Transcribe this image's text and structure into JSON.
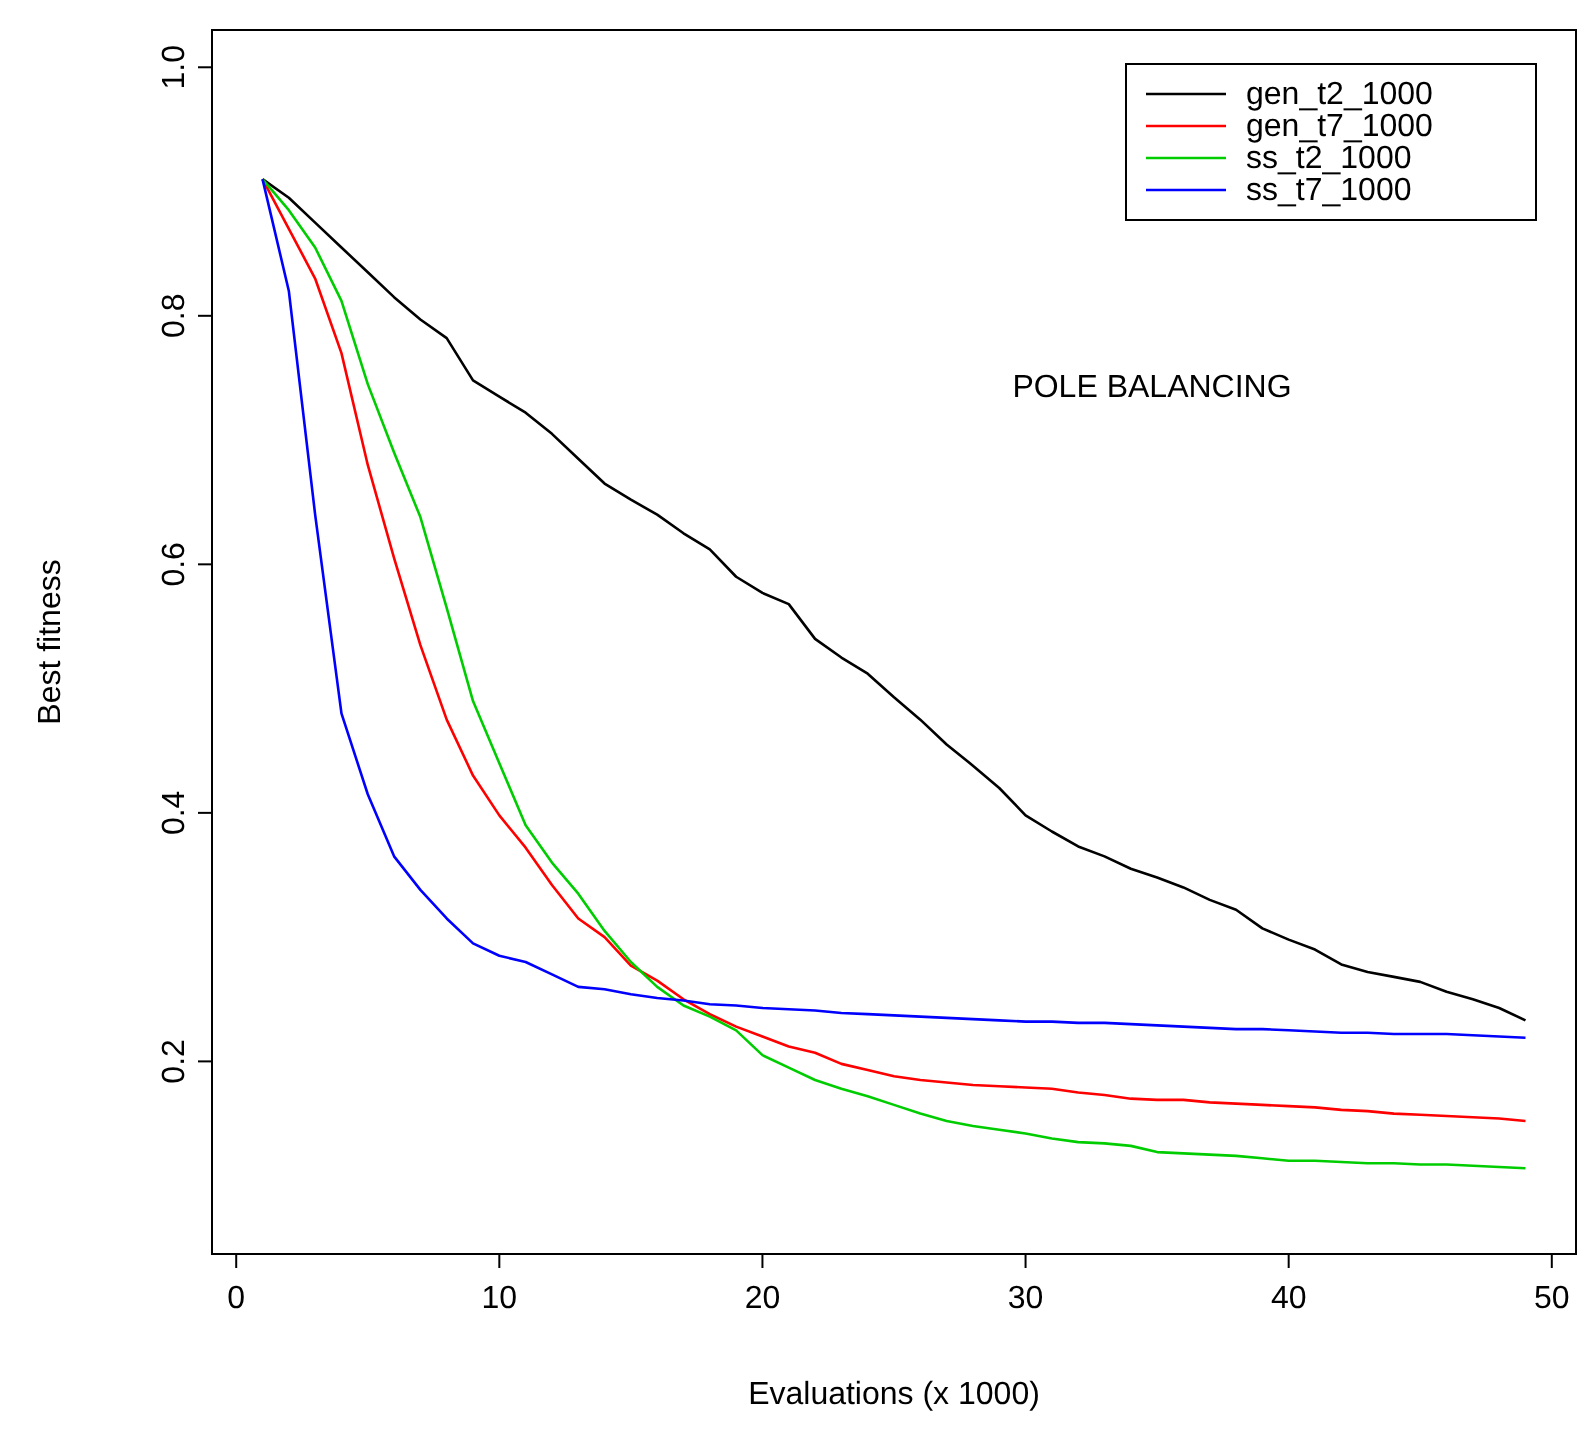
{
  "chart_data": {
    "type": "line",
    "xlabel": "Evaluations (x 1000)",
    "ylabel": "Best fitness",
    "annotations": [
      "POLE BALANCING"
    ],
    "x": [
      1,
      2,
      3,
      4,
      5,
      6,
      7,
      8,
      9,
      10,
      11,
      12,
      13,
      14,
      15,
      16,
      17,
      18,
      19,
      20,
      21,
      22,
      23,
      24,
      25,
      26,
      27,
      28,
      29,
      30,
      31,
      32,
      33,
      34,
      35,
      36,
      37,
      38,
      39,
      40,
      41,
      42,
      43,
      44,
      45,
      46,
      47,
      48,
      49
    ],
    "series": [
      {
        "name": "gen_t2_1000",
        "color": "#000000",
        "values": [
          0.91,
          0.895,
          0.875,
          0.855,
          0.835,
          0.815,
          0.797,
          0.782,
          0.748,
          0.735,
          0.722,
          0.705,
          0.685,
          0.665,
          0.652,
          0.64,
          0.625,
          0.612,
          0.59,
          0.577,
          0.568,
          0.54,
          0.525,
          0.512,
          0.493,
          0.475,
          0.455,
          0.438,
          0.42,
          0.398,
          0.385,
          0.373,
          0.365,
          0.355,
          0.348,
          0.34,
          0.33,
          0.322,
          0.307,
          0.298,
          0.29,
          0.278,
          0.272,
          0.268,
          0.264,
          0.256,
          0.25,
          0.243,
          0.233
        ]
      },
      {
        "name": "gen_t7_1000",
        "color": "#ff0000",
        "values": [
          0.91,
          0.87,
          0.83,
          0.77,
          0.68,
          0.605,
          0.535,
          0.475,
          0.43,
          0.398,
          0.372,
          0.342,
          0.315,
          0.3,
          0.277,
          0.265,
          0.25,
          0.238,
          0.228,
          0.22,
          0.212,
          0.207,
          0.198,
          0.193,
          0.188,
          0.185,
          0.183,
          0.181,
          0.18,
          0.179,
          0.178,
          0.175,
          0.173,
          0.17,
          0.169,
          0.169,
          0.167,
          0.166,
          0.165,
          0.164,
          0.163,
          0.161,
          0.16,
          0.158,
          0.157,
          0.156,
          0.155,
          0.154,
          0.152
        ]
      },
      {
        "name": "ss_t2_1000",
        "color": "#00cd00",
        "values": [
          0.91,
          0.885,
          0.855,
          0.812,
          0.745,
          0.69,
          0.638,
          0.565,
          0.49,
          0.44,
          0.39,
          0.36,
          0.335,
          0.305,
          0.28,
          0.26,
          0.245,
          0.236,
          0.225,
          0.205,
          0.195,
          0.185,
          0.178,
          0.172,
          0.165,
          0.158,
          0.152,
          0.148,
          0.145,
          0.142,
          0.138,
          0.135,
          0.134,
          0.132,
          0.127,
          0.126,
          0.125,
          0.124,
          0.122,
          0.12,
          0.12,
          0.119,
          0.118,
          0.118,
          0.117,
          0.117,
          0.116,
          0.115,
          0.114
        ]
      },
      {
        "name": "ss_t7_1000",
        "color": "#0000ff",
        "values": [
          0.91,
          0.82,
          0.64,
          0.48,
          0.415,
          0.365,
          0.338,
          0.315,
          0.295,
          0.285,
          0.28,
          0.27,
          0.26,
          0.258,
          0.254,
          0.251,
          0.249,
          0.246,
          0.245,
          0.243,
          0.242,
          0.241,
          0.239,
          0.238,
          0.237,
          0.236,
          0.235,
          0.234,
          0.233,
          0.232,
          0.232,
          0.231,
          0.231,
          0.23,
          0.229,
          0.228,
          0.227,
          0.226,
          0.226,
          0.225,
          0.224,
          0.223,
          0.223,
          0.222,
          0.222,
          0.222,
          0.221,
          0.22,
          0.219
        ]
      }
    ],
    "xlim": [
      -0.92,
      50.92
    ],
    "ylim": [
      0.045,
      1.03
    ],
    "xticks": [
      0,
      10,
      20,
      30,
      40,
      50
    ],
    "yticks": [
      0.2,
      0.4,
      0.6,
      0.8,
      {
        "value": 1,
        "label": "1.0"
      }
    ],
    "grid": false,
    "legend": "top right",
    "marker": "none",
    "line_style": "solid"
  }
}
